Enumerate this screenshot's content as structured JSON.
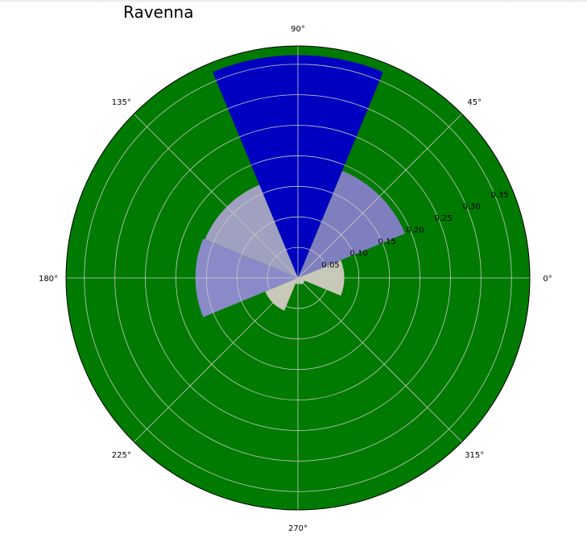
{
  "chart_data": {
    "type": "polar-bar",
    "title": "Ravenna",
    "background_color": "#007a00",
    "grid": true,
    "grid_color": "#c8c8c8",
    "r_max": 0.38,
    "r_ticks": [
      0.05,
      0.1,
      0.15,
      0.2,
      0.25,
      0.3,
      0.35
    ],
    "r_tick_labels": [
      "0.05",
      "0.10",
      "0.15",
      "0.20",
      "0.25",
      "0.30",
      "0.35"
    ],
    "r_label_angle_deg": 22.5,
    "angle_ticks_deg": [
      0,
      45,
      90,
      135,
      180,
      225,
      270,
      315
    ],
    "angle_tick_labels": [
      "0°",
      "45°",
      "90°",
      "135°",
      "180°",
      "225°",
      "270°",
      "315°"
    ],
    "bar_width_deg": 45,
    "bars": [
      {
        "angle_deg": 0,
        "value": 0.076,
        "color": "#c8c8b8"
      },
      {
        "angle_deg": 45,
        "value": 0.19,
        "color": "#7f7fbf"
      },
      {
        "angle_deg": 90,
        "value": 0.365,
        "color": "#0000c0"
      },
      {
        "angle_deg": 135,
        "value": 0.165,
        "color": "#a0a0c0"
      },
      {
        "angle_deg": 180,
        "value": 0.168,
        "color": "#8a8ac8"
      },
      {
        "angle_deg": 225,
        "value": 0.058,
        "color": "#c8c8b8"
      },
      {
        "angle_deg": 270,
        "value": 0.01,
        "color": "#c8c8b8"
      },
      {
        "angle_deg": 315,
        "value": 0.012,
        "color": "#c8c8b8"
      }
    ]
  }
}
